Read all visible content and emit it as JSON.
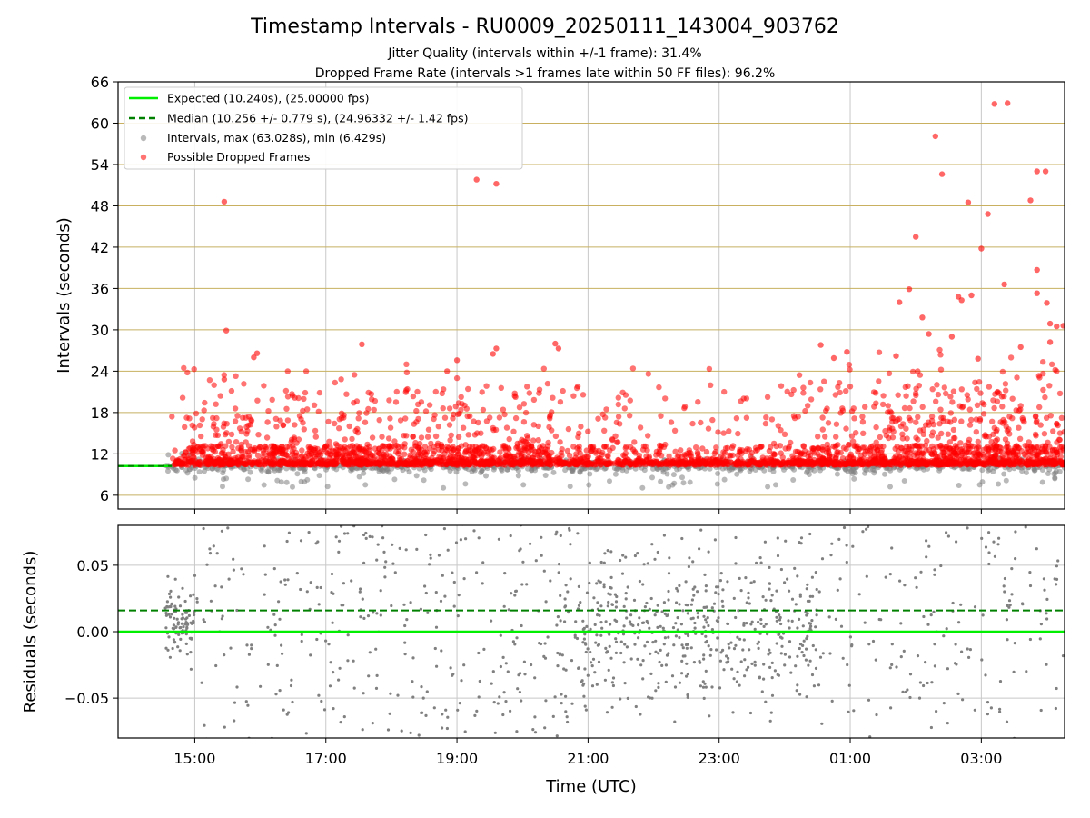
{
  "title": "Timestamp Intervals - RU0009_20250111_143004_903762",
  "subtitle_1": "Jitter Quality (intervals within +/-1 frame): 31.4%",
  "subtitle_2": "Dropped Frame Rate (intervals >1 frames late within 50 FF files): 96.2%",
  "colors": {
    "expected": "#00ee00",
    "median": "#008000",
    "intervals": "#808080",
    "dropped": "#ff0000",
    "y_grid_top": "#c8b060",
    "grid": "#c8c8c8"
  },
  "chart_data": [
    {
      "type": "scatter",
      "panel": "intervals",
      "ylabel": "Intervals (seconds)",
      "xlabel": "",
      "xlim_hours": [
        13.83,
        28.27
      ],
      "ylim": [
        4,
        66
      ],
      "x_ticks": [
        {
          "h": 15,
          "label": "15:00"
        },
        {
          "h": 17,
          "label": "17:00"
        },
        {
          "h": 19,
          "label": "19:00"
        },
        {
          "h": 21,
          "label": "21:00"
        },
        {
          "h": 23,
          "label": "23:00"
        },
        {
          "h": 25,
          "label": "01:00"
        },
        {
          "h": 27,
          "label": "03:00"
        }
      ],
      "y_ticks": [
        6,
        12,
        18,
        24,
        30,
        36,
        42,
        48,
        54,
        60,
        66
      ],
      "grid": true,
      "legend_placement": "top-left",
      "legend": [
        {
          "label": "Expected (10.240s), (25.00000 fps)",
          "kind": "solid-line"
        },
        {
          "label": "Median (10.256 +/- 0.779 s), (24.96332 +/- 1.42 fps)",
          "kind": "dashed-line"
        },
        {
          "label": "Intervals, max (63.028s), min (6.429s)",
          "kind": "grey-dot"
        },
        {
          "label": "Possible Dropped Frames",
          "kind": "red-dot"
        }
      ],
      "expected_interval": 10.24,
      "median_interval": 10.256,
      "max_interval": 63.028,
      "min_interval": 6.429,
      "data_start_hours": 14.55,
      "data_end_hours": 28.27,
      "dropped_outliers": [
        {
          "t": 15.45,
          "y": 48.6
        },
        {
          "t": 15.48,
          "y": 29.9
        },
        {
          "t": 15.45,
          "y": 22.8
        },
        {
          "t": 15.95,
          "y": 26.6
        },
        {
          "t": 15.9,
          "y": 26.0
        },
        {
          "t": 17.55,
          "y": 27.9
        },
        {
          "t": 19.3,
          "y": 51.8
        },
        {
          "t": 19.6,
          "y": 51.2
        },
        {
          "t": 19.6,
          "y": 27.3
        },
        {
          "t": 19.55,
          "y": 26.5
        },
        {
          "t": 19.0,
          "y": 25.6
        },
        {
          "t": 18.85,
          "y": 24.0
        },
        {
          "t": 20.5,
          "y": 28.0
        },
        {
          "t": 20.55,
          "y": 27.3
        },
        {
          "t": 24.55,
          "y": 27.8
        },
        {
          "t": 24.75,
          "y": 25.9
        },
        {
          "t": 24.95,
          "y": 26.8
        },
        {
          "t": 25.75,
          "y": 34.0
        },
        {
          "t": 25.9,
          "y": 35.9
        },
        {
          "t": 26.0,
          "y": 43.5
        },
        {
          "t": 26.1,
          "y": 31.8
        },
        {
          "t": 26.3,
          "y": 58.1
        },
        {
          "t": 26.4,
          "y": 52.6
        },
        {
          "t": 26.2,
          "y": 29.4
        },
        {
          "t": 26.55,
          "y": 29.0
        },
        {
          "t": 26.65,
          "y": 34.8
        },
        {
          "t": 26.7,
          "y": 34.3
        },
        {
          "t": 26.8,
          "y": 48.5
        },
        {
          "t": 26.85,
          "y": 35.0
        },
        {
          "t": 27.0,
          "y": 41.8
        },
        {
          "t": 27.1,
          "y": 46.8
        },
        {
          "t": 27.2,
          "y": 62.8
        },
        {
          "t": 27.4,
          "y": 62.9
        },
        {
          "t": 27.35,
          "y": 36.6
        },
        {
          "t": 27.75,
          "y": 48.8
        },
        {
          "t": 27.85,
          "y": 53.0
        },
        {
          "t": 27.98,
          "y": 53.0
        },
        {
          "t": 27.85,
          "y": 38.7
        },
        {
          "t": 27.85,
          "y": 35.3
        },
        {
          "t": 28.0,
          "y": 33.9
        },
        {
          "t": 28.05,
          "y": 30.9
        },
        {
          "t": 28.15,
          "y": 30.5
        },
        {
          "t": 28.05,
          "y": 28.2
        },
        {
          "t": 28.25,
          "y": 30.6
        },
        {
          "t": 27.6,
          "y": 27.5
        },
        {
          "t": 26.95,
          "y": 25.8
        },
        {
          "t": 25.7,
          "y": 26.2
        }
      ]
    },
    {
      "type": "scatter",
      "panel": "residuals",
      "ylabel": "Residuals (seconds)",
      "xlabel": "Time (UTC)",
      "xlim_hours": [
        13.83,
        28.27
      ],
      "ylim": [
        -0.08,
        0.08
      ],
      "y_ticks": [
        {
          "v": -0.05,
          "label": "−0.05"
        },
        {
          "v": 0.0,
          "label": "0.00"
        },
        {
          "v": 0.05,
          "label": "0.05"
        }
      ],
      "expected_residual": 0.0,
      "median_residual": 0.016,
      "grid": true
    }
  ]
}
